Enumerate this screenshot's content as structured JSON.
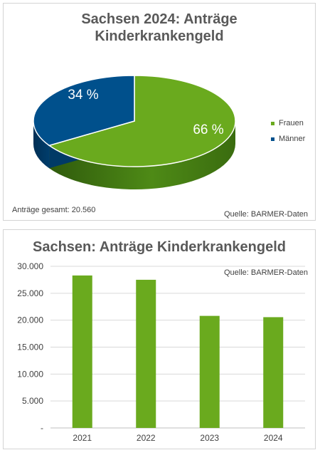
{
  "chart_data": [
    {
      "type": "pie",
      "title": "Sachsen 2024: Anträge Kinderkrankengeld",
      "title_lines": [
        "Sachsen 2024: Anträge",
        "Kinderkrankengeld"
      ],
      "slices": [
        {
          "label": "Frauen",
          "value": 66,
          "data_label": "66 %",
          "color": "#6aaa1e"
        },
        {
          "label": "Männer",
          "value": 34,
          "data_label": "34 %",
          "color": "#00508c"
        }
      ],
      "legend": "right",
      "annotations": [
        "Anträge gesamt: 20.560",
        "Quelle: BARMER-Daten"
      ]
    },
    {
      "type": "bar",
      "title": "Sachsen: Anträge Kinderkrankengeld",
      "categories": [
        "2021",
        "2022",
        "2023",
        "2024"
      ],
      "values": [
        28300,
        27500,
        20800,
        20560
      ],
      "ylim": [
        0,
        30000
      ],
      "yticks": [
        0,
        5000,
        10000,
        15000,
        20000,
        25000,
        30000
      ],
      "ytick_labels": [
        "-",
        "5.000",
        "10.000",
        "15.000",
        "20.000",
        "25.000",
        "30.000"
      ],
      "grid": true,
      "bar_color": "#6aaa1e",
      "annotations": [
        "Quelle: BARMER-Daten"
      ]
    }
  ]
}
